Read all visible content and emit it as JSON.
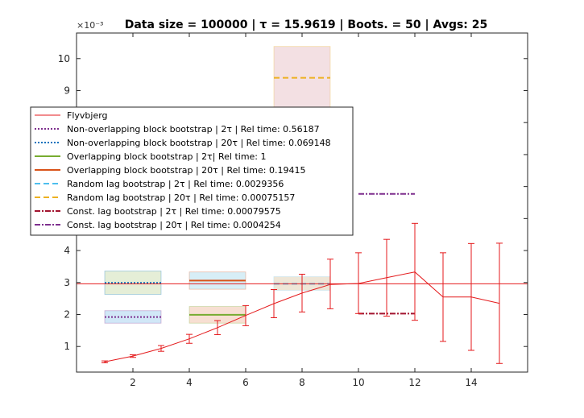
{
  "chart_data": {
    "type": "line",
    "title": "Data size = 100000 | τ = 15.9619 | Boots. = 50 | Avgs: 25",
    "axis_exponent": "×10⁻³",
    "xlim": [
      0,
      16
    ],
    "ylim": [
      0.2,
      10.8
    ],
    "x_ticks": [
      2,
      4,
      6,
      8,
      10,
      12,
      14
    ],
    "y_ticks": [
      1,
      2,
      3,
      4,
      5,
      6,
      7,
      8,
      9,
      10
    ],
    "reference_line": {
      "y": 2.96,
      "color": "#e41a1c"
    },
    "flyvbjerg": {
      "name": "Flyvbjerg",
      "color": "#e41a1c",
      "x": [
        1,
        2,
        3,
        4,
        5,
        6,
        7,
        8,
        9,
        10,
        11,
        12,
        13,
        14,
        15
      ],
      "y": [
        0.52,
        0.7,
        0.94,
        1.24,
        1.59,
        1.97,
        2.34,
        2.67,
        2.94,
        2.97,
        3.15,
        3.33,
        2.55,
        2.55,
        2.35
      ],
      "err_low": [
        0.49,
        0.66,
        0.85,
        1.1,
        1.37,
        1.65,
        1.9,
        2.08,
        2.18,
        2.03,
        1.95,
        1.82,
        1.16,
        0.88,
        0.47
      ],
      "err_high": [
        0.55,
        0.74,
        1.03,
        1.38,
        1.81,
        2.28,
        2.78,
        3.26,
        3.73,
        3.93,
        4.35,
        4.85,
        3.93,
        4.22,
        4.23
      ]
    },
    "estimates": [
      {
        "name": "Non-overlapping block bootstrap | 2τ | Rel time:  0.56187",
        "color": "#7e2f8e",
        "dash": "2 2",
        "x": [
          1,
          3
        ],
        "y": 1.92,
        "band": [
          1.73,
          2.12
        ],
        "band_color": "#cce4f6"
      },
      {
        "name": "Non-overlapping block bootstrap | 20τ | Rel time:  0.069148",
        "color": "#0072bd",
        "dash": "2 2",
        "x": [
          1,
          3
        ],
        "y": 2.99,
        "band": [
          2.63,
          3.36
        ],
        "band_color": "#e2ecd3"
      },
      {
        "name": "Overlapping block bootstrap | 2τ| Rel time:  1",
        "color": "#77ac30",
        "dash": "",
        "x": [
          4,
          6
        ],
        "y": 1.99,
        "band": [
          1.73,
          2.25
        ],
        "band_color": "#f6dccd"
      },
      {
        "name": "Overlapping block bootstrap | 20τ | Rel time:  0.19415",
        "color": "#d95319",
        "dash": "",
        "x": [
          4,
          6
        ],
        "y": 3.06,
        "band": [
          2.79,
          3.33
        ],
        "band_color": "#d3ecf5"
      },
      {
        "name": "Random lag bootstrap | 2τ | Rel time:  0.0029356",
        "color": "#4dbeee",
        "dash": "7 4",
        "x": [
          7,
          9
        ],
        "y": 2.96,
        "band": [
          2.76,
          3.18
        ],
        "band_color": "#d3ecf5"
      },
      {
        "name": "Random lag bootstrap | 20τ | Rel time:  0.00075157",
        "color": "#edb120",
        "dash": "7 4",
        "x": [
          7,
          9
        ],
        "y": 9.4,
        "band": [
          8.45,
          10.38
        ],
        "band_color": "#f2dde0"
      },
      {
        "name": "Const. lag bootstrap | 2τ | Rel time:  0.00079575",
        "color": "#a2142f",
        "dash": "7 2 2 2",
        "x": [
          10,
          12
        ],
        "y": 2.03,
        "band": [
          null,
          null
        ],
        "band_color": ""
      },
      {
        "name": "Const. lag bootstrap | 20τ | Rel time:  0.0004254",
        "color": "#7e2f8e",
        "dash": "7 2 2 2",
        "x": [
          10,
          12
        ],
        "y": 5.77,
        "band": [
          null,
          null
        ],
        "band_color": ""
      }
    ],
    "band_extra": {
      "x": [
        7,
        9
      ],
      "band": [
        2.76,
        3.18
      ],
      "band_color": "#f8e3cb"
    },
    "legend_placement": "upper-left",
    "grid": false
  }
}
